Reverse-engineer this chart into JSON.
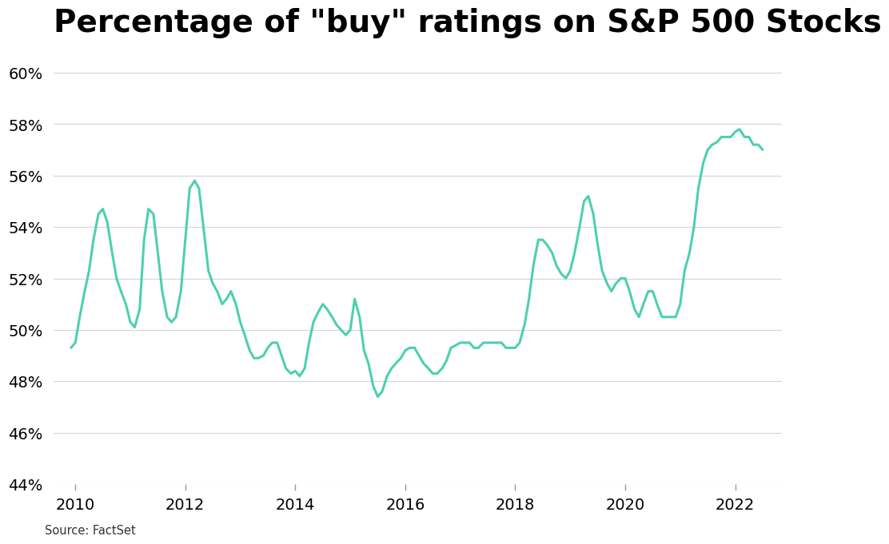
{
  "title": "Percentage of \"buy\" ratings on S&P 500 Stocks",
  "source": "Source: FactSet",
  "line_color": "#4ecfb0",
  "background_color": "#ffffff",
  "title_fontsize": 28,
  "title_fontweight": "bold",
  "ylim": [
    44,
    61
  ],
  "yticks": [
    44,
    46,
    48,
    50,
    52,
    54,
    56,
    58,
    60
  ],
  "xticks": [
    2010,
    2012,
    2014,
    2016,
    2018,
    2020,
    2022
  ],
  "line_width": 2.2,
  "x": [
    2009.92,
    2010.0,
    2010.08,
    2010.17,
    2010.25,
    2010.33,
    2010.42,
    2010.5,
    2010.58,
    2010.67,
    2010.75,
    2010.83,
    2010.92,
    2011.0,
    2011.08,
    2011.17,
    2011.25,
    2011.33,
    2011.42,
    2011.5,
    2011.58,
    2011.67,
    2011.75,
    2011.83,
    2011.92,
    2012.0,
    2012.08,
    2012.17,
    2012.25,
    2012.33,
    2012.42,
    2012.5,
    2012.58,
    2012.67,
    2012.75,
    2012.83,
    2012.92,
    2013.0,
    2013.08,
    2013.17,
    2013.25,
    2013.33,
    2013.42,
    2013.5,
    2013.58,
    2013.67,
    2013.75,
    2013.83,
    2013.92,
    2014.0,
    2014.08,
    2014.17,
    2014.25,
    2014.33,
    2014.42,
    2014.5,
    2014.58,
    2014.67,
    2014.75,
    2014.83,
    2014.92,
    2015.0,
    2015.08,
    2015.17,
    2015.25,
    2015.33,
    2015.42,
    2015.5,
    2015.58,
    2015.67,
    2015.75,
    2015.83,
    2015.92,
    2016.0,
    2016.08,
    2016.17,
    2016.25,
    2016.33,
    2016.42,
    2016.5,
    2016.58,
    2016.67,
    2016.75,
    2016.83,
    2016.92,
    2017.0,
    2017.08,
    2017.17,
    2017.25,
    2017.33,
    2017.42,
    2017.5,
    2017.58,
    2017.67,
    2017.75,
    2017.83,
    2017.92,
    2018.0,
    2018.08,
    2018.17,
    2018.25,
    2018.33,
    2018.42,
    2018.5,
    2018.58,
    2018.67,
    2018.75,
    2018.83,
    2018.92,
    2019.0,
    2019.08,
    2019.17,
    2019.25,
    2019.33,
    2019.42,
    2019.5,
    2019.58,
    2019.67,
    2019.75,
    2019.83,
    2019.92,
    2020.0,
    2020.08,
    2020.17,
    2020.25,
    2020.33,
    2020.42,
    2020.5,
    2020.58,
    2020.67,
    2020.75,
    2020.83,
    2020.92,
    2021.0,
    2021.08,
    2021.17,
    2021.25,
    2021.33,
    2021.42,
    2021.5,
    2021.58,
    2021.67,
    2021.75,
    2021.83,
    2021.92,
    2022.0,
    2022.08,
    2022.17,
    2022.25,
    2022.33,
    2022.42,
    2022.5
  ],
  "y": [
    49.3,
    49.5,
    50.5,
    51.5,
    52.3,
    53.5,
    54.5,
    54.7,
    54.2,
    53.0,
    52.0,
    51.5,
    51.0,
    50.3,
    50.1,
    50.8,
    53.5,
    54.7,
    54.5,
    53.0,
    51.5,
    50.5,
    50.3,
    50.5,
    51.5,
    53.5,
    55.5,
    55.8,
    55.5,
    54.0,
    52.3,
    51.8,
    51.5,
    51.0,
    51.2,
    51.5,
    51.0,
    50.3,
    49.8,
    49.2,
    48.9,
    48.9,
    49.0,
    49.3,
    49.5,
    49.5,
    49.0,
    48.5,
    48.3,
    48.4,
    48.2,
    48.5,
    49.5,
    50.3,
    50.7,
    51.0,
    50.8,
    50.5,
    50.2,
    50.0,
    49.8,
    50.0,
    51.2,
    50.5,
    49.2,
    48.7,
    47.8,
    47.4,
    47.6,
    48.2,
    48.5,
    48.7,
    48.9,
    49.2,
    49.3,
    49.3,
    49.0,
    48.7,
    48.5,
    48.3,
    48.3,
    48.5,
    48.8,
    49.3,
    49.4,
    49.5,
    49.5,
    49.5,
    49.3,
    49.3,
    49.5,
    49.5,
    49.5,
    49.5,
    49.5,
    49.3,
    49.3,
    49.3,
    49.5,
    50.2,
    51.2,
    52.5,
    53.5,
    53.5,
    53.3,
    53.0,
    52.5,
    52.2,
    52.0,
    52.3,
    53.0,
    54.0,
    55.0,
    55.2,
    54.5,
    53.3,
    52.3,
    51.8,
    51.5,
    51.8,
    52.0,
    52.0,
    51.5,
    50.8,
    50.5,
    51.0,
    51.5,
    51.5,
    51.0,
    50.5,
    50.5,
    50.5,
    50.5,
    51.0,
    52.3,
    53.0,
    54.0,
    55.5,
    56.5,
    57.0,
    57.2,
    57.3,
    57.5,
    57.5,
    57.5,
    57.7,
    57.8,
    57.5,
    57.5,
    57.2,
    57.2,
    57.0
  ]
}
